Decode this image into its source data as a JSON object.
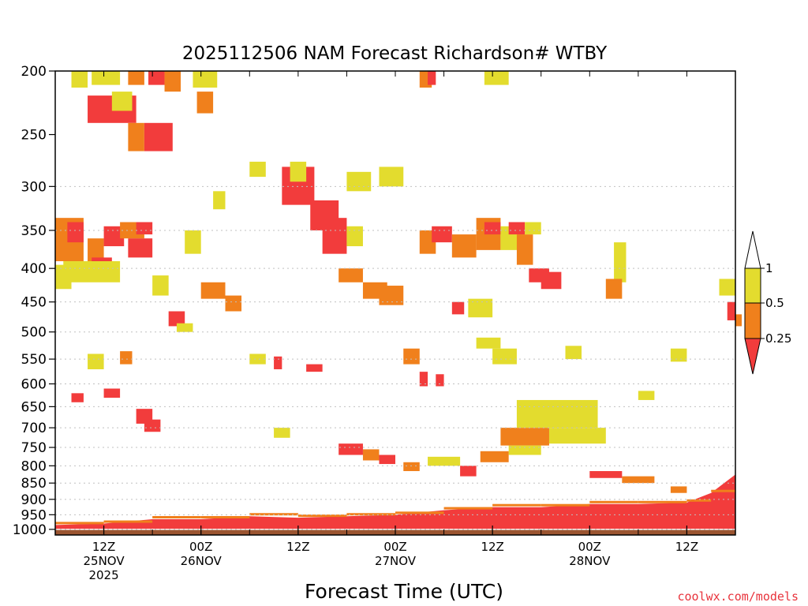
{
  "chart_data": {
    "type": "heatmap",
    "title": "2025112506 NAM Forecast Richardson# WTBY",
    "xlabel": "Forecast Time (UTC)",
    "credit": "coolwx.com/models",
    "y_scale": "log-pressure",
    "y_inverted": true,
    "ylim": [
      1020,
      200
    ],
    "xlim_hours": [
      6,
      90
    ],
    "y_ticks": [
      200,
      250,
      300,
      350,
      400,
      450,
      500,
      550,
      600,
      650,
      700,
      750,
      800,
      850,
      900,
      950,
      1000
    ],
    "grid_levels": [
      300,
      350,
      400,
      450,
      500,
      550,
      600,
      650,
      700,
      750,
      800,
      850,
      900,
      950,
      1000
    ],
    "x_ticks": [
      {
        "hour": 12,
        "lines": [
          "12Z",
          "25NOV",
          "2025"
        ]
      },
      {
        "hour": 24,
        "lines": [
          "00Z",
          "26NOV"
        ]
      },
      {
        "hour": 36,
        "lines": [
          "12Z"
        ]
      },
      {
        "hour": 48,
        "lines": [
          "00Z",
          "27NOV"
        ]
      },
      {
        "hour": 60,
        "lines": [
          "12Z"
        ]
      },
      {
        "hour": 72,
        "lines": [
          "00Z",
          "28NOV"
        ]
      },
      {
        "hour": 84,
        "lines": [
          "12Z"
        ]
      }
    ],
    "legend": {
      "levels": [
        "1",
        "0.5",
        "0.25"
      ],
      "colors": {
        "above_1": "#ffffff",
        "0.5-1": "#e3dc2e",
        "0.25-0.5": "#f0801c",
        "below_0.25": "#f23c3c"
      }
    },
    "colors": {
      "ground": "#9b5531",
      "grid": "#c0c0c0"
    },
    "cells": [
      {
        "h0": 6,
        "h1": 9.5,
        "p0": 335,
        "p1": 390,
        "v": "0.25-0.5"
      },
      {
        "h0": 7.5,
        "h1": 9.5,
        "p0": 340,
        "p1": 365,
        "v": "below_0.25"
      },
      {
        "h0": 10,
        "h1": 12,
        "p0": 360,
        "p1": 400,
        "v": "0.25-0.5"
      },
      {
        "h0": 10.5,
        "h1": 13,
        "p0": 385,
        "p1": 415,
        "v": "below_0.25"
      },
      {
        "h0": 12,
        "h1": 14.5,
        "p0": 345,
        "p1": 370,
        "v": "below_0.25"
      },
      {
        "h0": 15,
        "h1": 18,
        "p0": 360,
        "p1": 385,
        "v": "below_0.25"
      },
      {
        "h0": 14,
        "h1": 17,
        "p0": 340,
        "p1": 360,
        "v": "0.25-0.5"
      },
      {
        "h0": 16,
        "h1": 18,
        "p0": 340,
        "p1": 355,
        "v": "below_0.25"
      },
      {
        "h0": 6,
        "h1": 8,
        "p0": 395,
        "p1": 430,
        "v": "0.5-1"
      },
      {
        "h0": 7,
        "h1": 14,
        "p0": 390,
        "p1": 420,
        "v": "0.5-1"
      },
      {
        "h0": 10,
        "h1": 16,
        "p0": 218,
        "p1": 240,
        "v": "below_0.25"
      },
      {
        "h0": 13,
        "h1": 15.5,
        "p0": 215,
        "p1": 230,
        "v": "0.5-1"
      },
      {
        "h0": 15,
        "h1": 17,
        "p0": 240,
        "p1": 265,
        "v": "0.25-0.5"
      },
      {
        "h0": 17,
        "h1": 20.5,
        "p0": 240,
        "p1": 265,
        "v": "below_0.25"
      },
      {
        "h0": 8,
        "h1": 10,
        "p0": 200,
        "p1": 212,
        "v": "0.5-1"
      },
      {
        "h0": 10.5,
        "h1": 14,
        "p0": 200,
        "p1": 210,
        "v": "0.5-1"
      },
      {
        "h0": 15,
        "h1": 17,
        "p0": 200,
        "p1": 210,
        "v": "0.25-0.5"
      },
      {
        "h0": 17.5,
        "h1": 19.5,
        "p0": 200,
        "p1": 210,
        "v": "below_0.25"
      },
      {
        "h0": 19.5,
        "h1": 21.5,
        "p0": 200,
        "p1": 215,
        "v": "0.25-0.5"
      },
      {
        "h0": 23,
        "h1": 26,
        "p0": 200,
        "p1": 212,
        "v": "0.5-1"
      },
      {
        "h0": 23.5,
        "h1": 25.5,
        "p0": 215,
        "p1": 232,
        "v": "0.25-0.5"
      },
      {
        "h0": 25.5,
        "h1": 27,
        "p0": 305,
        "p1": 325,
        "v": "0.5-1"
      },
      {
        "h0": 34,
        "h1": 38,
        "p0": 280,
        "p1": 320,
        "v": "below_0.25"
      },
      {
        "h0": 35,
        "h1": 37,
        "p0": 275,
        "p1": 295,
        "v": "0.5-1"
      },
      {
        "h0": 37.5,
        "h1": 41,
        "p0": 315,
        "p1": 350,
        "v": "below_0.25"
      },
      {
        "h0": 39,
        "h1": 42,
        "p0": 335,
        "p1": 380,
        "v": "below_0.25"
      },
      {
        "h0": 42,
        "h1": 44,
        "p0": 345,
        "p1": 370,
        "v": "0.5-1"
      },
      {
        "h0": 44,
        "h1": 47,
        "p0": 420,
        "p1": 445,
        "v": "0.25-0.5"
      },
      {
        "h0": 46,
        "h1": 49,
        "p0": 425,
        "p1": 455,
        "v": "0.25-0.5"
      },
      {
        "h0": 41,
        "h1": 44,
        "p0": 400,
        "p1": 420,
        "v": "0.25-0.5"
      },
      {
        "h0": 51,
        "h1": 53,
        "p0": 350,
        "p1": 380,
        "v": "0.25-0.5"
      },
      {
        "h0": 52.5,
        "h1": 55,
        "p0": 345,
        "p1": 365,
        "v": "below_0.25"
      },
      {
        "h0": 55,
        "h1": 58,
        "p0": 355,
        "p1": 385,
        "v": "0.25-0.5"
      },
      {
        "h0": 58,
        "h1": 61,
        "p0": 335,
        "p1": 375,
        "v": "0.25-0.5"
      },
      {
        "h0": 59,
        "h1": 61,
        "p0": 340,
        "p1": 355,
        "v": "below_0.25"
      },
      {
        "h0": 61,
        "h1": 64,
        "p0": 345,
        "p1": 375,
        "v": "0.5-1"
      },
      {
        "h0": 62,
        "h1": 64,
        "p0": 340,
        "p1": 355,
        "v": "below_0.25"
      },
      {
        "h0": 63,
        "h1": 65,
        "p0": 355,
        "p1": 395,
        "v": "0.25-0.5"
      },
      {
        "h0": 64.5,
        "h1": 67,
        "p0": 400,
        "p1": 420,
        "v": "below_0.25"
      },
      {
        "h0": 66,
        "h1": 68.5,
        "p0": 405,
        "p1": 430,
        "v": "below_0.25"
      },
      {
        "h0": 55,
        "h1": 56.5,
        "p0": 450,
        "p1": 470,
        "v": "below_0.25"
      },
      {
        "h0": 57,
        "h1": 60,
        "p0": 445,
        "p1": 475,
        "v": "0.5-1"
      },
      {
        "h0": 58,
        "h1": 61,
        "p0": 510,
        "p1": 530,
        "v": "0.5-1"
      },
      {
        "h0": 60,
        "h1": 63,
        "p0": 530,
        "p1": 560,
        "v": "0.5-1"
      },
      {
        "h0": 61,
        "h1": 67,
        "p0": 700,
        "p1": 745,
        "v": "0.25-0.5"
      },
      {
        "h0": 63,
        "h1": 73,
        "p0": 635,
        "p1": 700,
        "v": "0.5-1"
      },
      {
        "h0": 67,
        "h1": 74,
        "p0": 700,
        "p1": 740,
        "v": "0.5-1"
      },
      {
        "h0": 62,
        "h1": 66,
        "p0": 745,
        "p1": 770,
        "v": "0.5-1"
      },
      {
        "h0": 24,
        "h1": 27,
        "p0": 420,
        "p1": 445,
        "v": "0.25-0.5"
      },
      {
        "h0": 27,
        "h1": 29,
        "p0": 440,
        "p1": 465,
        "v": "0.25-0.5"
      },
      {
        "h0": 20,
        "h1": 22,
        "p0": 465,
        "p1": 490,
        "v": "below_0.25"
      },
      {
        "h0": 21,
        "h1": 23,
        "p0": 485,
        "p1": 500,
        "v": "0.5-1"
      },
      {
        "h0": 10,
        "h1": 12,
        "p0": 540,
        "p1": 570,
        "v": "0.5-1"
      },
      {
        "h0": 14,
        "h1": 15.5,
        "p0": 535,
        "p1": 560,
        "v": "0.25-0.5"
      },
      {
        "h0": 8,
        "h1": 9.5,
        "p0": 620,
        "p1": 640,
        "v": "below_0.25"
      },
      {
        "h0": 12,
        "h1": 14,
        "p0": 610,
        "p1": 630,
        "v": "below_0.25"
      },
      {
        "h0": 16,
        "h1": 18,
        "p0": 655,
        "p1": 690,
        "v": "below_0.25"
      },
      {
        "h0": 17,
        "h1": 19,
        "p0": 680,
        "p1": 710,
        "v": "below_0.25"
      },
      {
        "h0": 33,
        "h1": 35,
        "p0": 700,
        "p1": 725,
        "v": "0.5-1"
      },
      {
        "h0": 41,
        "h1": 44,
        "p0": 740,
        "p1": 770,
        "v": "below_0.25"
      },
      {
        "h0": 44,
        "h1": 46,
        "p0": 755,
        "p1": 785,
        "v": "0.25-0.5"
      },
      {
        "h0": 46,
        "h1": 48,
        "p0": 770,
        "p1": 795,
        "v": "below_0.25"
      },
      {
        "h0": 49,
        "h1": 51,
        "p0": 790,
        "p1": 815,
        "v": "0.25-0.5"
      },
      {
        "h0": 52,
        "h1": 56,
        "p0": 775,
        "p1": 800,
        "v": "0.5-1"
      },
      {
        "h0": 56,
        "h1": 58,
        "p0": 800,
        "p1": 830,
        "v": "below_0.25"
      },
      {
        "h0": 58.5,
        "h1": 62,
        "p0": 760,
        "p1": 790,
        "v": "0.25-0.5"
      },
      {
        "h0": 72,
        "h1": 76,
        "p0": 815,
        "p1": 835,
        "v": "below_0.25"
      },
      {
        "h0": 76,
        "h1": 80,
        "p0": 830,
        "p1": 850,
        "v": "0.25-0.5"
      },
      {
        "h0": 82,
        "h1": 84,
        "p0": 860,
        "p1": 880,
        "v": "0.25-0.5"
      },
      {
        "h0": 88,
        "h1": 90,
        "p0": 415,
        "p1": 440,
        "v": "0.5-1"
      },
      {
        "h0": 89,
        "h1": 90,
        "p0": 450,
        "p1": 480,
        "v": "below_0.25"
      },
      {
        "h0": 90,
        "h1": 90,
        "p0": 470,
        "p1": 490,
        "v": "0.25-0.5"
      },
      {
        "h0": 82,
        "h1": 84,
        "p0": 530,
        "p1": 555,
        "v": "0.5-1"
      },
      {
        "h0": 75,
        "h1": 76.5,
        "p0": 365,
        "p1": 420,
        "v": "0.5-1"
      },
      {
        "h0": 74,
        "h1": 76,
        "p0": 415,
        "p1": 445,
        "v": "0.25-0.5"
      },
      {
        "h0": 78,
        "h1": 80,
        "p0": 615,
        "p1": 635,
        "v": "0.5-1"
      },
      {
        "h0": 69,
        "h1": 71,
        "p0": 525,
        "p1": 550,
        "v": "0.5-1"
      },
      {
        "h0": 49,
        "h1": 51,
        "p0": 530,
        "p1": 560,
        "v": "0.25-0.5"
      },
      {
        "h0": 51,
        "h1": 52,
        "p0": 575,
        "p1": 605,
        "v": "below_0.25"
      },
      {
        "h0": 53,
        "h1": 54,
        "p0": 580,
        "p1": 605,
        "v": "below_0.25"
      },
      {
        "h0": 51,
        "h1": 52.5,
        "p0": 200,
        "p1": 212,
        "v": "0.25-0.5"
      },
      {
        "h0": 52,
        "h1": 53,
        "p0": 200,
        "p1": 210,
        "v": "below_0.25"
      },
      {
        "h0": 59,
        "h1": 62,
        "p0": 200,
        "p1": 210,
        "v": "0.5-1"
      },
      {
        "h0": 42,
        "h1": 45,
        "p0": 285,
        "p1": 305,
        "v": "0.5-1"
      },
      {
        "h0": 46,
        "h1": 49,
        "p0": 280,
        "p1": 300,
        "v": "0.5-1"
      },
      {
        "h0": 64,
        "h1": 66,
        "p0": 340,
        "p1": 355,
        "v": "0.5-1"
      },
      {
        "h0": 30,
        "h1": 32,
        "p0": 275,
        "p1": 290,
        "v": "0.5-1"
      },
      {
        "h0": 22,
        "h1": 24,
        "p0": 350,
        "p1": 380,
        "v": "0.5-1"
      },
      {
        "h0": 18,
        "h1": 20,
        "p0": 410,
        "p1": 440,
        "v": "0.5-1"
      },
      {
        "h0": 30,
        "h1": 32,
        "p0": 540,
        "p1": 560,
        "v": "0.5-1"
      },
      {
        "h0": 37,
        "h1": 39,
        "p0": 560,
        "p1": 575,
        "v": "below_0.25"
      },
      {
        "h0": 33,
        "h1": 34,
        "p0": 545,
        "p1": 570,
        "v": "below_0.25"
      }
    ],
    "surface_band": [
      {
        "hour": 6,
        "p": 985
      },
      {
        "hour": 12,
        "p": 980
      },
      {
        "hour": 18,
        "p": 965
      },
      {
        "hour": 24,
        "p": 965
      },
      {
        "hour": 30,
        "p": 955
      },
      {
        "hour": 36,
        "p": 960
      },
      {
        "hour": 42,
        "p": 955
      },
      {
        "hour": 48,
        "p": 950
      },
      {
        "hour": 54,
        "p": 935
      },
      {
        "hour": 60,
        "p": 925
      },
      {
        "hour": 66,
        "p": 925
      },
      {
        "hour": 72,
        "p": 915
      },
      {
        "hour": 78,
        "p": 915
      },
      {
        "hour": 84,
        "p": 910
      },
      {
        "hour": 87,
        "p": 880
      },
      {
        "hour": 90,
        "p": 825
      }
    ],
    "ground_top": 1000
  }
}
